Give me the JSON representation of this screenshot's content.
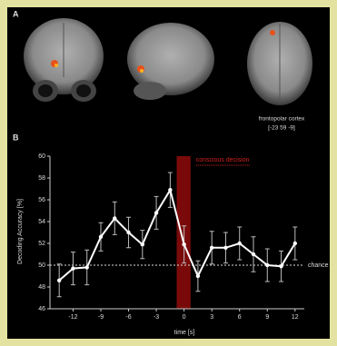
{
  "panel_a": {
    "label": "A",
    "caption": "frontopolar cortex",
    "coordinates": "[-23 59 -9]"
  },
  "chart_data": {
    "type": "line",
    "panel_label": "B",
    "x_label": "time [s]",
    "y_label": "Decoding Accuracy [%]",
    "x": [
      -13.5,
      -12,
      -10.5,
      -9,
      -7.5,
      -6,
      -4.5,
      -3,
      -1.5,
      0,
      1.5,
      3,
      4.5,
      6,
      7.5,
      9,
      10.5,
      12
    ],
    "values": [
      48.6,
      49.7,
      49.8,
      52.6,
      54.3,
      53.0,
      51.9,
      54.8,
      56.9,
      51.9,
      49.0,
      51.6,
      51.6,
      52.0,
      51.0,
      50.0,
      49.9,
      52.0
    ],
    "errors": [
      1.5,
      1.5,
      1.6,
      1.3,
      1.5,
      1.4,
      1.3,
      1.5,
      1.6,
      1.7,
      1.4,
      1.5,
      1.4,
      1.5,
      1.6,
      1.5,
      1.4,
      1.5
    ],
    "color": "#ffffff",
    "xlim": [
      -14.5,
      13
    ],
    "ylim": [
      46,
      60
    ],
    "xticks": [
      -12,
      -9,
      -6,
      -3,
      0,
      3,
      6,
      9,
      12
    ],
    "yticks": [
      46,
      48,
      50,
      52,
      54,
      56,
      58,
      60
    ],
    "chance": {
      "label": "chance",
      "value": 50
    },
    "decision": {
      "label": "conscious decision",
      "range": [
        -0.8,
        0.7
      ],
      "color": "#7a0a0a"
    }
  }
}
